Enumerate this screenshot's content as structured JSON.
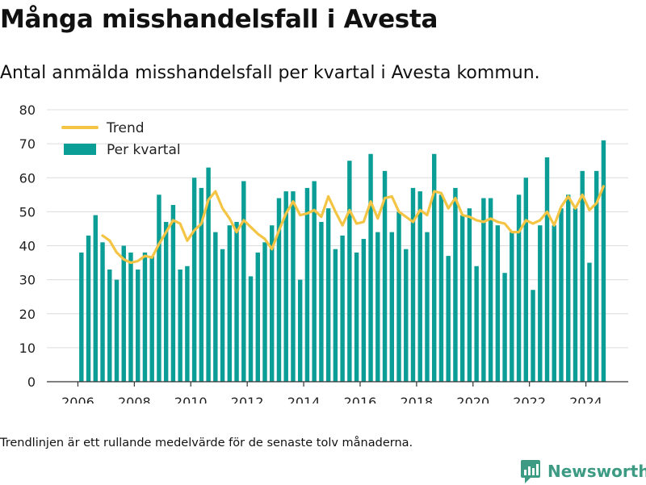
{
  "title": "Många misshandelsfall i Avesta",
  "subtitle": "Antal anmälda misshandelsfall per kvartal i Avesta kommun.",
  "footnote": "Trendlinjen är ett rullande medelvärde för de senaste tolv månaderna.",
  "brand": {
    "name": "Newsworthy",
    "icon": "chart-logo-icon",
    "color": "#3d9b84"
  },
  "colors": {
    "bars": "#0a9e96",
    "trend": "#f4c444",
    "grid": "#dcdcdc",
    "axis": "#333333"
  },
  "chart_data": {
    "type": "bar",
    "ylim": [
      0,
      80
    ],
    "yticks": [
      0,
      10,
      20,
      30,
      40,
      50,
      60,
      70,
      80
    ],
    "xlim": [
      2004.9,
      2025.5
    ],
    "xticks": [
      2006,
      2008,
      2010,
      2012,
      2014,
      2016,
      2018,
      2020,
      2022,
      2024
    ],
    "grid": true,
    "legend_position": "top-left",
    "series": [
      {
        "name": "Per kvartal",
        "type": "bar",
        "color": "#0a9e96",
        "x": [
          "2006Q1",
          "2006Q2",
          "2006Q3",
          "2006Q4",
          "2007Q1",
          "2007Q2",
          "2007Q3",
          "2007Q4",
          "2008Q1",
          "2008Q2",
          "2008Q3",
          "2008Q4",
          "2009Q1",
          "2009Q2",
          "2009Q3",
          "2009Q4",
          "2010Q1",
          "2010Q2",
          "2010Q3",
          "2010Q4",
          "2011Q1",
          "2011Q2",
          "2011Q3",
          "2011Q4",
          "2012Q1",
          "2012Q2",
          "2012Q3",
          "2012Q4",
          "2013Q1",
          "2013Q2",
          "2013Q3",
          "2013Q4",
          "2014Q1",
          "2014Q2",
          "2014Q3",
          "2014Q4",
          "2015Q1",
          "2015Q2",
          "2015Q3",
          "2015Q4",
          "2016Q1",
          "2016Q2",
          "2016Q3",
          "2016Q4",
          "2017Q1",
          "2017Q2",
          "2017Q3",
          "2017Q4",
          "2018Q1",
          "2018Q2",
          "2018Q3",
          "2018Q4",
          "2019Q1",
          "2019Q2",
          "2019Q3",
          "2019Q4",
          "2020Q1",
          "2020Q2",
          "2020Q3",
          "2020Q4",
          "2021Q1",
          "2021Q2",
          "2021Q3",
          "2021Q4",
          "2022Q1",
          "2022Q2",
          "2022Q3",
          "2022Q4",
          "2023Q1",
          "2023Q2",
          "2023Q3",
          "2023Q4",
          "2024Q1",
          "2024Q2",
          "2024Q3"
        ],
        "values": [
          38,
          43,
          49,
          41,
          33,
          30,
          40,
          38,
          33,
          38,
          37,
          55,
          47,
          52,
          33,
          34,
          60,
          57,
          63,
          44,
          39,
          46,
          47,
          59,
          31,
          38,
          41,
          46,
          54,
          56,
          56,
          30,
          57,
          59,
          47,
          51,
          39,
          43,
          65,
          38,
          42,
          67,
          44,
          62,
          44,
          50,
          39,
          57,
          56,
          44,
          67,
          55,
          37,
          57,
          49,
          51,
          34,
          54,
          54,
          46,
          32,
          44,
          55,
          60,
          27,
          46,
          66,
          46,
          51,
          55,
          51,
          62,
          35,
          62,
          71
        ]
      },
      {
        "name": "Trend",
        "type": "line",
        "color": "#f4c444",
        "x": [
          "2006Q4",
          "2007Q1",
          "2007Q2",
          "2007Q3",
          "2007Q4",
          "2008Q1",
          "2008Q2",
          "2008Q3",
          "2008Q4",
          "2009Q1",
          "2009Q2",
          "2009Q3",
          "2009Q4",
          "2010Q1",
          "2010Q2",
          "2010Q3",
          "2010Q4",
          "2011Q1",
          "2011Q2",
          "2011Q3",
          "2011Q4",
          "2012Q1",
          "2012Q2",
          "2012Q3",
          "2012Q4",
          "2013Q1",
          "2013Q2",
          "2013Q3",
          "2013Q4",
          "2014Q1",
          "2014Q2",
          "2014Q3",
          "2014Q4",
          "2015Q1",
          "2015Q2",
          "2015Q3",
          "2015Q4",
          "2016Q1",
          "2016Q2",
          "2016Q3",
          "2016Q4",
          "2017Q1",
          "2017Q2",
          "2017Q3",
          "2017Q4",
          "2018Q1",
          "2018Q2",
          "2018Q3",
          "2018Q4",
          "2019Q1",
          "2019Q2",
          "2019Q3",
          "2019Q4",
          "2020Q1",
          "2020Q2",
          "2020Q3",
          "2020Q4",
          "2021Q1",
          "2021Q2",
          "2021Q3",
          "2021Q4",
          "2022Q1",
          "2022Q2",
          "2022Q3",
          "2022Q4",
          "2023Q1",
          "2023Q2",
          "2023Q3",
          "2023Q4",
          "2024Q1",
          "2024Q2",
          "2024Q3"
        ],
        "values": [
          43,
          41.5,
          38,
          36,
          35,
          35.5,
          37,
          36.5,
          40.5,
          44,
          47.5,
          46.5,
          41.5,
          44.5,
          46.5,
          53.5,
          56,
          51,
          48,
          44,
          47.5,
          45.5,
          43.5,
          42,
          39,
          44.5,
          49.5,
          53,
          49,
          49.5,
          50.5,
          48.5,
          54.5,
          50,
          46,
          50.5,
          46.5,
          47,
          53,
          48,
          54,
          54.5,
          50,
          48.5,
          47,
          50.5,
          49,
          56,
          55.5,
          51,
          54,
          49,
          48.5,
          47.5,
          47,
          48,
          47,
          46.5,
          44,
          44,
          47.5,
          46.5,
          47.5,
          50,
          46,
          51.5,
          54.5,
          51,
          55,
          50.5,
          52.5,
          57.5
        ]
      }
    ]
  }
}
